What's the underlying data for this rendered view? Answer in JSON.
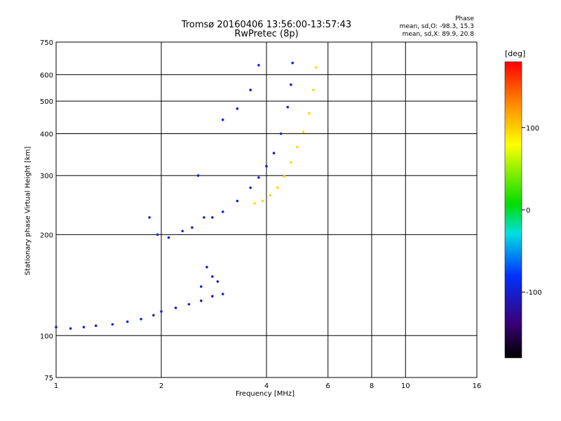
{
  "chart_data": {
    "type": "scatter",
    "title": "Tromsø 20160406 13:56:00-13:57:43",
    "subtitle": "RwPretec (8p)",
    "xlabel": "Frequency [MHz]",
    "ylabel": "Stationary phase Virtual Height [km]",
    "x_scale": "log",
    "y_scale": "log",
    "xlim": [
      1,
      16
    ],
    "ylim": [
      75,
      750
    ],
    "x_ticks": [
      1,
      2,
      4,
      6,
      8,
      10,
      16
    ],
    "y_ticks": [
      75,
      100,
      200,
      300,
      400,
      500,
      600,
      750
    ],
    "grid": true,
    "phase_box": {
      "heading": "Phase",
      "line1": "mean, sd,O: -98.3, 15.3",
      "line2": "mean, sd,X: 89.9, 20.8"
    },
    "colorbar": {
      "label": "[deg]",
      "range": [
        -180,
        180
      ],
      "ticks": [
        "100",
        "0",
        "-100"
      ],
      "tick_values": [
        100,
        0,
        -100
      ]
    },
    "series": [
      {
        "mode": "O",
        "phase_deg": -100,
        "points": [
          [
            1.0,
            106
          ],
          [
            1.1,
            105
          ],
          [
            1.2,
            106
          ],
          [
            1.3,
            107
          ],
          [
            1.45,
            108
          ],
          [
            1.6,
            110
          ],
          [
            1.75,
            112
          ],
          [
            1.9,
            115
          ],
          [
            2.0,
            118
          ],
          [
            2.2,
            121
          ],
          [
            2.4,
            124
          ],
          [
            2.6,
            127
          ],
          [
            2.8,
            131
          ],
          [
            3.0,
            133
          ],
          [
            1.85,
            225
          ],
          [
            1.95,
            200
          ],
          [
            2.1,
            196
          ],
          [
            2.3,
            205
          ],
          [
            2.45,
            210
          ],
          [
            2.55,
            300
          ],
          [
            2.65,
            225
          ],
          [
            2.8,
            225
          ],
          [
            3.0,
            234
          ],
          [
            3.3,
            252
          ],
          [
            3.6,
            276
          ],
          [
            3.8,
            296
          ],
          [
            4.0,
            320
          ],
          [
            4.2,
            350
          ],
          [
            4.4,
            400
          ],
          [
            4.6,
            480
          ],
          [
            4.7,
            560
          ],
          [
            4.75,
            650
          ],
          [
            3.0,
            440
          ],
          [
            3.3,
            475
          ],
          [
            3.6,
            540
          ],
          [
            3.8,
            640
          ],
          [
            2.6,
            140
          ],
          [
            2.7,
            160
          ],
          [
            2.8,
            150
          ],
          [
            2.9,
            145
          ]
        ]
      },
      {
        "mode": "X",
        "phase_deg": 95,
        "points": [
          [
            3.7,
            248
          ],
          [
            3.9,
            252
          ],
          [
            4.1,
            262
          ],
          [
            4.3,
            276
          ],
          [
            4.5,
            298
          ],
          [
            4.7,
            328
          ],
          [
            4.9,
            365
          ],
          [
            5.1,
            405
          ],
          [
            5.3,
            460
          ],
          [
            5.45,
            540
          ],
          [
            5.55,
            630
          ]
        ]
      }
    ]
  }
}
